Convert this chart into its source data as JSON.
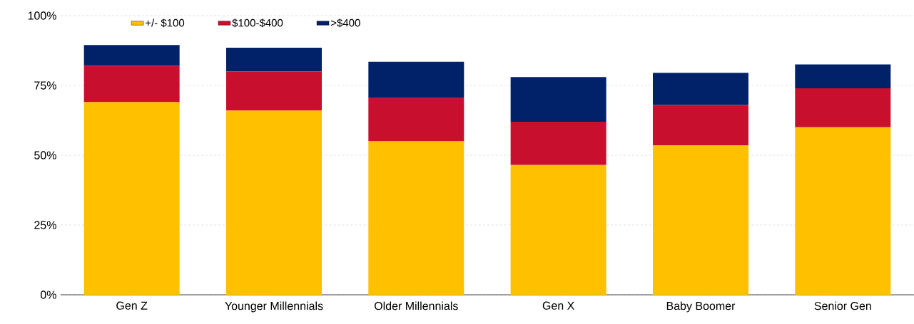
{
  "chart_data": {
    "type": "bar",
    "stacked": true,
    "categories": [
      "Gen Z",
      "Younger Millennials",
      "Older Millennials",
      "Gen X",
      "Baby Boomer",
      "Senior Gen"
    ],
    "series": [
      {
        "name": "+/- $100",
        "color": "#ffc000",
        "values": [
          69,
          66,
          55,
          46.5,
          53.5,
          60
        ]
      },
      {
        "name": "$100-$400",
        "color": "#c8102e",
        "values": [
          13,
          14,
          15.5,
          15.5,
          14.5,
          14
        ]
      },
      {
        "name": ">$400",
        "color": "#012169",
        "values": [
          7.5,
          8.5,
          13,
          16,
          11.5,
          8.5
        ]
      }
    ],
    "ylim": [
      0,
      100
    ],
    "yticks": [
      {
        "value": 0,
        "label": "0%"
      },
      {
        "value": 25,
        "label": "25%"
      },
      {
        "value": 50,
        "label": "50%"
      },
      {
        "value": 75,
        "label": "75%"
      },
      {
        "value": 100,
        "label": "100%"
      }
    ],
    "grid": "y",
    "legend": "top left"
  }
}
